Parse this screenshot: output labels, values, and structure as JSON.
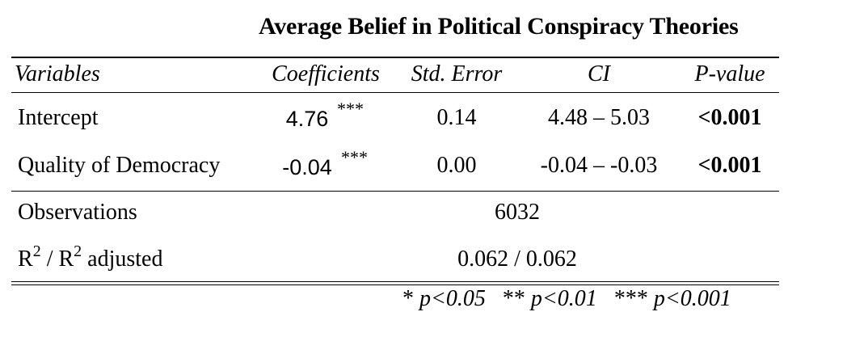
{
  "table": {
    "title": "Average Belief in Political Conspiracy Theories",
    "headers": {
      "variables": "Variables",
      "coefficients": "Coefficients",
      "std_error": "Std. Error",
      "ci": "CI",
      "p_value": "P-value"
    },
    "rows": [
      {
        "variable": "Intercept",
        "coefficient": "4.76",
        "stars": "***",
        "std_error": "0.14",
        "ci": "4.48 – 5.03",
        "p_value": "<0.001"
      },
      {
        "variable": "Quality of Democracy",
        "coefficient": "-0.04",
        "stars": "***",
        "std_error": "0.00",
        "ci": "-0.04 – -0.03",
        "p_value": "<0.001"
      }
    ],
    "stats": {
      "observations_label": "Observations",
      "observations_value": "6032",
      "r2_label_r": "R",
      "r2_label_sup": "2",
      "r2_label_sep": " / R",
      "r2_label_sup2": "2",
      "r2_label_tail": " adjusted",
      "r2_value": "0.062 / 0.062"
    },
    "footnote": {
      "s1_stars": "*",
      "s1_text": "p<0.05",
      "s2_stars": "**",
      "s2_text": "p<0.01",
      "s3_stars": "***",
      "s3_text": "p<0.001"
    }
  }
}
